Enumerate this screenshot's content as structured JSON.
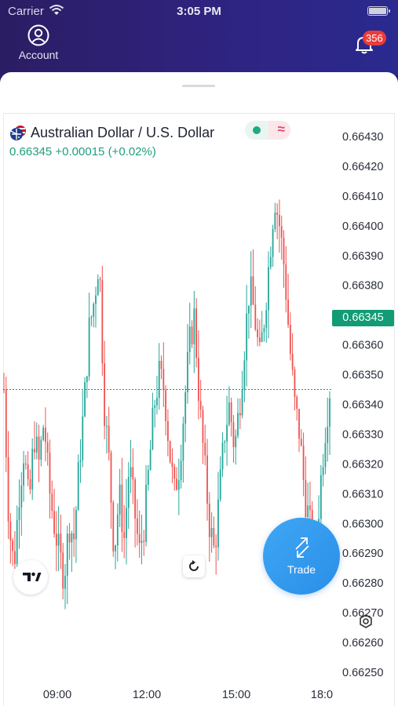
{
  "status_bar": {
    "carrier": "Carrier",
    "time": "3:05 PM"
  },
  "header": {
    "account_label": "Account",
    "notification_count": "356"
  },
  "symbol": {
    "name": "Australian Dollar / U.S. Dollar",
    "price": "0.66345",
    "change": "+0.00015",
    "change_percent": "(+0.02%)",
    "current_price_label": "0.66345"
  },
  "trade_button": {
    "label": "Trade"
  },
  "colors": {
    "up": "#26a69a",
    "down": "#ef5350",
    "accent": "#129b75"
  },
  "chart_data": {
    "type": "candlestick",
    "xlabel": "",
    "ylabel": "",
    "ylim": [
      0.66248,
      0.66432
    ],
    "y_ticks": [
      "0.66430",
      "0.66420",
      "0.66410",
      "0.66400",
      "0.66390",
      "0.66380",
      "0.66370",
      "0.66360",
      "0.66350",
      "0.66340",
      "0.66330",
      "0.66320",
      "0.66310",
      "0.66300",
      "0.66290",
      "0.66280",
      "0.66270",
      "0.66260",
      "0.66250"
    ],
    "x_ticks": [
      "09:00",
      "12:00",
      "15:00",
      "18:0"
    ],
    "current_price": 0.66345,
    "series": [
      {
        "close_path": [
          0.66345,
          0.663,
          0.66285,
          0.6631,
          0.66325,
          0.66305,
          0.6633,
          0.6632,
          0.66335,
          0.66312,
          0.663,
          0.6629,
          0.66282,
          0.663,
          0.66295,
          0.6632,
          0.6634,
          0.66365,
          0.66375,
          0.6639,
          0.6634,
          0.6632,
          0.6629,
          0.6631,
          0.66295,
          0.6632,
          0.66305,
          0.6629,
          0.663,
          0.6632,
          0.6634,
          0.6635,
          0.66345,
          0.66325,
          0.6631,
          0.6632,
          0.6634,
          0.6636,
          0.6637,
          0.6634,
          0.6632,
          0.663,
          0.6629,
          0.6631,
          0.6633,
          0.6634,
          0.66325,
          0.6634,
          0.6636,
          0.6638,
          0.6637,
          0.66355,
          0.6637,
          0.6639,
          0.6641,
          0.664,
          0.66385,
          0.6636,
          0.6634,
          0.6633,
          0.6631,
          0.663,
          0.66285,
          0.6631,
          0.6633,
          0.66345
        ]
      }
    ]
  }
}
